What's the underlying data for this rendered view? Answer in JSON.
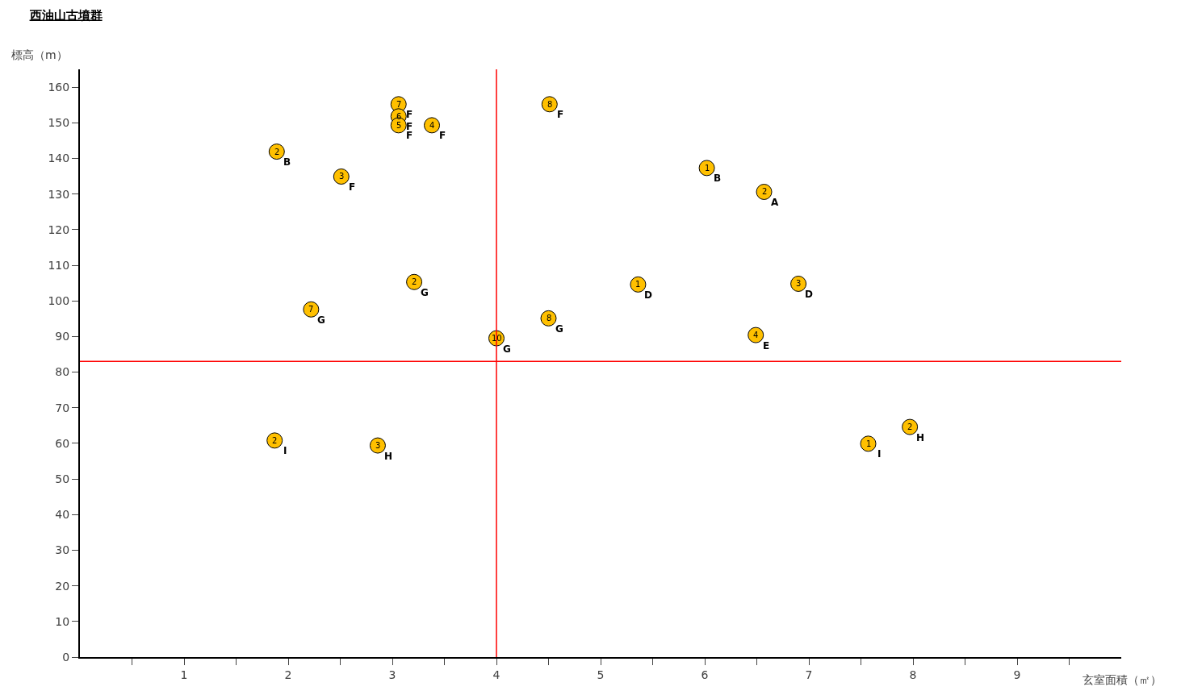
{
  "chart_data": {
    "type": "scatter",
    "title": "西油山古墳群",
    "xlabel": "玄室面積（㎡）",
    "ylabel": "標高（m）",
    "x": [
      3.06,
      3.06,
      3.06,
      3.38,
      4.51,
      1.89,
      2.51,
      6.02,
      6.57,
      3.21,
      2.22,
      5.36,
      6.9,
      4.5,
      4.0,
      6.49,
      1.87,
      2.86,
      7.57,
      7.97
    ],
    "values": [
      155.2,
      151.8,
      149.3,
      149.3,
      155.2,
      141.9,
      134.9,
      137.3,
      130.6,
      105.3,
      97.6,
      104.6,
      104.8,
      95.1,
      89.5,
      90.4,
      60.8,
      59.4,
      59.9,
      64.6
    ],
    "color": "#ffc000",
    "marker": "circle",
    "annotations": [
      {
        "text": "7",
        "x": 3.06,
        "y": 155.2
      },
      {
        "text": "F",
        "x": 3.06,
        "y": 155.2
      },
      {
        "text": "6",
        "x": 3.06,
        "y": 151.8
      },
      {
        "text": "F",
        "x": 3.06,
        "y": 151.8
      },
      {
        "text": "5",
        "x": 3.06,
        "y": 149.3
      },
      {
        "text": "F",
        "x": 3.06,
        "y": 149.3
      },
      {
        "text": "4",
        "x": 3.38,
        "y": 149.3
      },
      {
        "text": "F",
        "x": 3.38,
        "y": 149.3
      },
      {
        "text": "8",
        "x": 4.51,
        "y": 155.2
      },
      {
        "text": "F",
        "x": 4.51,
        "y": 155.2
      },
      {
        "text": "2",
        "x": 1.89,
        "y": 141.9
      },
      {
        "text": "B",
        "x": 1.89,
        "y": 141.9
      },
      {
        "text": "3",
        "x": 2.51,
        "y": 134.9
      },
      {
        "text": "F",
        "x": 2.51,
        "y": 134.9
      },
      {
        "text": "1",
        "x": 6.02,
        "y": 137.3
      },
      {
        "text": "B",
        "x": 6.02,
        "y": 137.3
      },
      {
        "text": "2",
        "x": 6.57,
        "y": 130.6
      },
      {
        "text": "A",
        "x": 6.57,
        "y": 130.6
      },
      {
        "text": "2",
        "x": 3.21,
        "y": 105.3
      },
      {
        "text": "G",
        "x": 3.21,
        "y": 105.3
      },
      {
        "text": "7",
        "x": 2.22,
        "y": 97.6
      },
      {
        "text": "G",
        "x": 2.22,
        "y": 97.6
      },
      {
        "text": "1",
        "x": 5.36,
        "y": 104.6
      },
      {
        "text": "D",
        "x": 5.36,
        "y": 104.6
      },
      {
        "text": "3",
        "x": 6.9,
        "y": 104.8
      },
      {
        "text": "D",
        "x": 6.9,
        "y": 104.8
      },
      {
        "text": "8",
        "x": 4.5,
        "y": 95.1
      },
      {
        "text": "G",
        "x": 4.5,
        "y": 95.1
      },
      {
        "text": "10",
        "x": 4.0,
        "y": 89.5
      },
      {
        "text": "G",
        "x": 4.0,
        "y": 89.5
      },
      {
        "text": "4",
        "x": 6.49,
        "y": 90.4
      },
      {
        "text": "E",
        "x": 6.49,
        "y": 90.4
      },
      {
        "text": "2",
        "x": 1.87,
        "y": 60.8
      },
      {
        "text": "I",
        "x": 1.87,
        "y": 60.8
      },
      {
        "text": "3",
        "x": 2.86,
        "y": 59.4
      },
      {
        "text": "H",
        "x": 2.86,
        "y": 59.4
      },
      {
        "text": "1",
        "x": 7.57,
        "y": 59.9
      },
      {
        "text": "I",
        "x": 7.57,
        "y": 59.9
      },
      {
        "text": "2",
        "x": 7.97,
        "y": 64.6
      },
      {
        "text": "H",
        "x": 7.97,
        "y": 64.6
      }
    ],
    "ref_lines": [
      {
        "axis": "x",
        "value": 4,
        "color": "#ff0000"
      },
      {
        "axis": "y",
        "value": 83,
        "color": "#ff0000"
      }
    ],
    "xlim": [
      0,
      10
    ],
    "xticks": [
      {
        "value": 0.5,
        "label": null
      },
      1,
      {
        "value": 1.5,
        "label": null
      },
      2,
      {
        "value": 2.5,
        "label": null
      },
      3,
      {
        "value": 3.5,
        "label": null
      },
      4,
      {
        "value": 4.5,
        "label": null
      },
      5,
      {
        "value": 5.5,
        "label": null
      },
      6,
      {
        "value": 6.5,
        "label": null
      },
      7,
      {
        "value": 7.5,
        "label": null
      },
      8,
      {
        "value": 8.5,
        "label": null
      },
      9,
      {
        "value": 9.5,
        "label": null
      }
    ],
    "ylim": [
      0,
      165
    ],
    "yticks": [
      0,
      10,
      20,
      30,
      40,
      50,
      60,
      70,
      80,
      90,
      100,
      110,
      120,
      130,
      140,
      150,
      160
    ]
  }
}
